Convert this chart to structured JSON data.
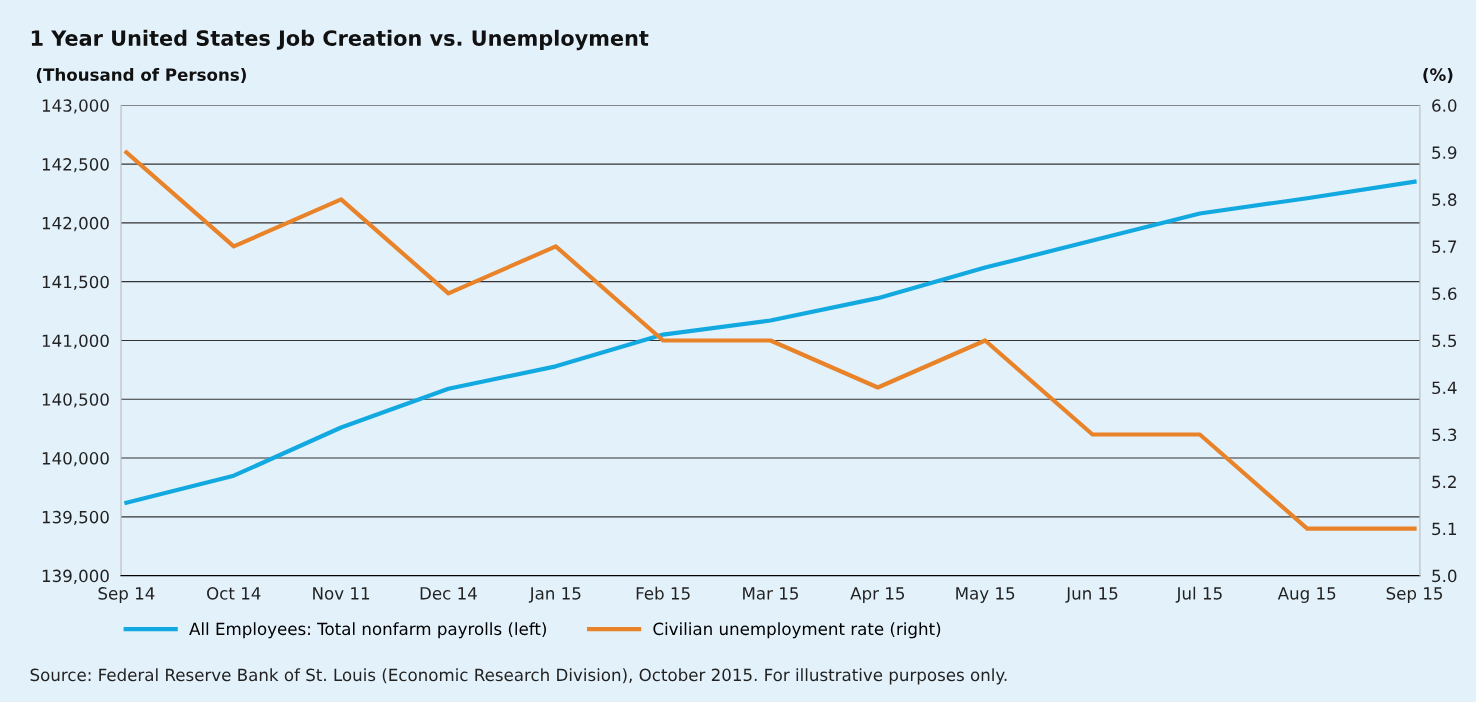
{
  "chart_data": {
    "type": "line",
    "title": "1 Year United States Job Creation vs. Unemployment",
    "ylabel": "(Thousand of Persons)",
    "y2label": "(%)",
    "categories": [
      "Sep 14",
      "Oct 14",
      "Nov 11",
      "Dec 14",
      "Jan 15",
      "Feb 15",
      "Mar 15",
      "Apr 15",
      "May 15",
      "Jun 15",
      "Jul 15",
      "Aug 15",
      "Sep 15"
    ],
    "series": [
      {
        "name": "All Employees: Total nonfarm payrolls (left)",
        "color": "#12a9e0",
        "values": [
          139620,
          139850,
          140260,
          140590,
          140780,
          141050,
          141170,
          141360,
          141620,
          141850,
          142080,
          142210,
          142350
        ]
      },
      {
        "name": "Civilian unemployment rate (right)",
        "color": "#e8832a",
        "axis": "y2",
        "values": [
          5.9,
          5.7,
          5.8,
          5.6,
          5.7,
          5.5,
          5.5,
          5.4,
          5.5,
          5.3,
          5.3,
          5.1,
          5.1
        ]
      }
    ],
    "ylim": [
      139000,
      143000
    ],
    "yticks": [
      {
        "value": 139000,
        "label": "139,000"
      },
      {
        "value": 139500,
        "label": "139,500"
      },
      {
        "value": 140000,
        "label": "140,000"
      },
      {
        "value": 140500,
        "label": "140,500"
      },
      {
        "value": 141000,
        "label": "141,000"
      },
      {
        "value": 141500,
        "label": "141,500"
      },
      {
        "value": 142000,
        "label": "142,000"
      },
      {
        "value": 142500,
        "label": "142,500"
      },
      {
        "value": 143000,
        "label": "143,000"
      }
    ],
    "y2lim": [
      5.0,
      6.0
    ],
    "y2ticks": [
      {
        "value": 5.0,
        "label": "5.0"
      },
      {
        "value": 5.1,
        "label": "5.1"
      },
      {
        "value": 5.2,
        "label": "5.2"
      },
      {
        "value": 5.3,
        "label": "5.3"
      },
      {
        "value": 5.4,
        "label": "5.4"
      },
      {
        "value": 5.5,
        "label": "5.5"
      },
      {
        "value": 5.6,
        "label": "5.6"
      },
      {
        "value": 5.7,
        "label": "5.7"
      },
      {
        "value": 5.8,
        "label": "5.8"
      },
      {
        "value": 5.9,
        "label": "5.9"
      },
      {
        "value": 6.0,
        "label": "6.0"
      }
    ],
    "grid": "y",
    "legend": "bottom",
    "line_style": "solid",
    "marker": "none",
    "annotations": [
      "Source: Federal Reserve Bank of St. Louis (Economic Research Division), October 2015. For illustrative purposes only."
    ]
  }
}
